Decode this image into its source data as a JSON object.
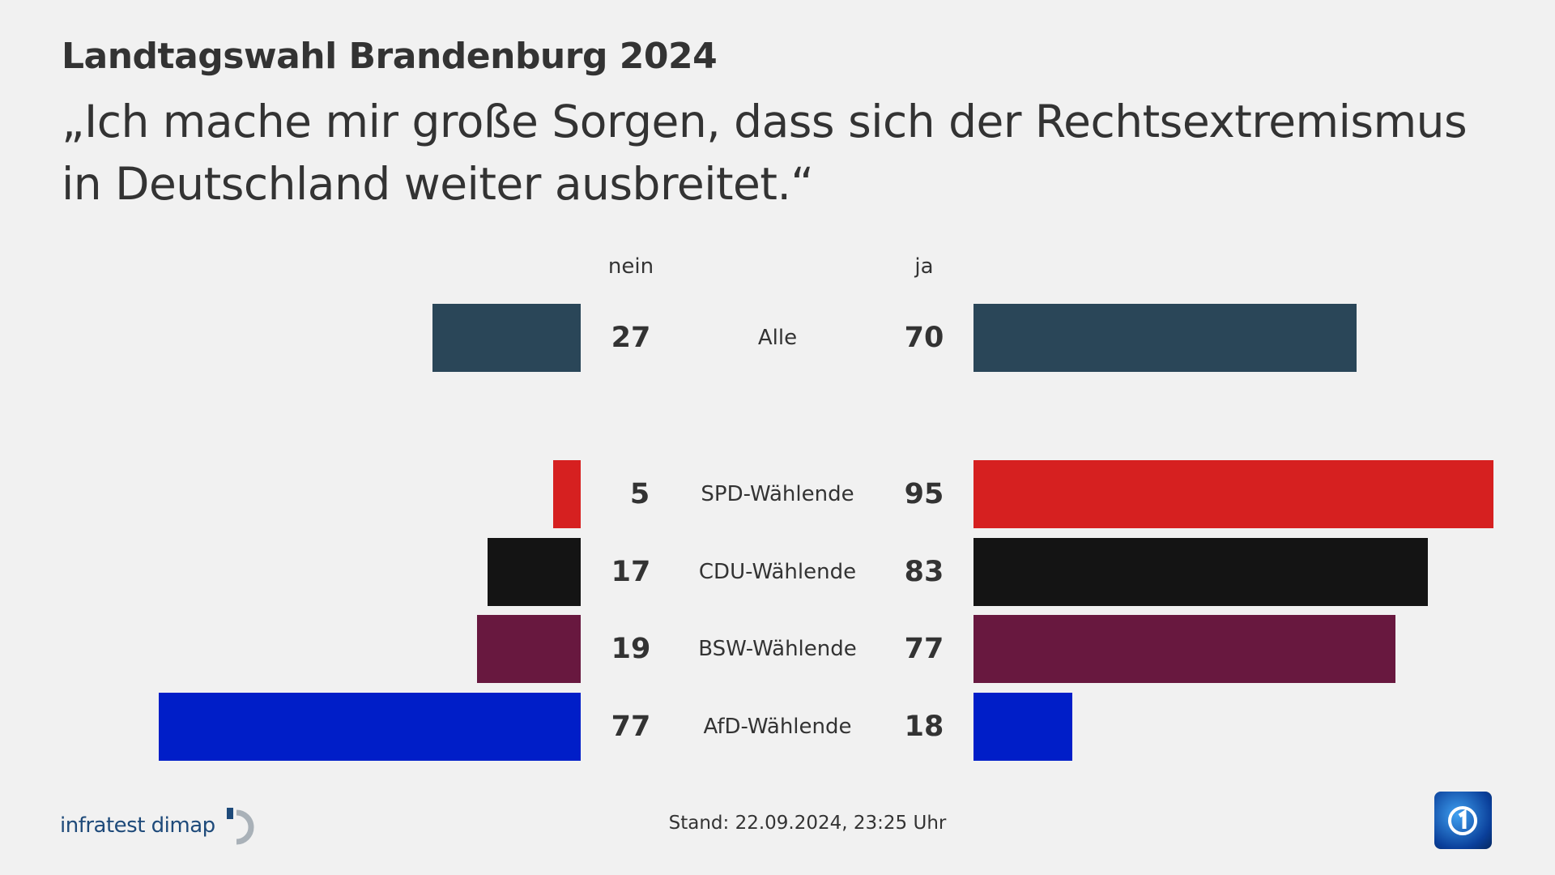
{
  "title": "Landtagswahl Brandenburg 2024",
  "subtitle": "„Ich mache mir große Sorgen, dass sich der Rechtsextremismus in Deutschland weiter ausbreitet.“",
  "chart_data": {
    "type": "bar",
    "orientation": "diverging-horizontal",
    "column_headers": {
      "left": "nein",
      "right": "ja"
    },
    "categories": [
      "Alle",
      "SPD-Wählende",
      "CDU-Wählende",
      "BSW-Wählende",
      "AfD-Wählende"
    ],
    "series": [
      {
        "name": "nein",
        "values": [
          27,
          5,
          17,
          19,
          77
        ]
      },
      {
        "name": "ja",
        "values": [
          70,
          95,
          83,
          77,
          18
        ]
      }
    ],
    "colors": [
      "#2a4658",
      "#d62020",
      "#141414",
      "#68183f",
      "#001ec8"
    ],
    "grid": false
  },
  "footer": {
    "source_logo": "infratest dimap",
    "stand": "Stand:  22.09.2024, 23:25 Uhr",
    "broadcaster_logo": "ARD tagesschau"
  }
}
